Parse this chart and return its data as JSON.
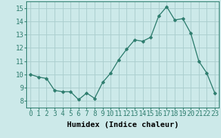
{
  "x": [
    0,
    1,
    2,
    3,
    4,
    5,
    6,
    7,
    8,
    9,
    10,
    11,
    12,
    13,
    14,
    15,
    16,
    17,
    18,
    19,
    20,
    21,
    22,
    23
  ],
  "y": [
    10.0,
    9.8,
    9.7,
    8.8,
    8.7,
    8.7,
    8.1,
    8.6,
    8.2,
    9.4,
    10.1,
    11.1,
    11.9,
    12.6,
    12.5,
    12.8,
    14.4,
    15.1,
    14.1,
    14.2,
    13.1,
    11.0,
    10.1,
    8.6
  ],
  "xlabel": "Humidex (Indice chaleur)",
  "xlim": [
    -0.5,
    23.5
  ],
  "ylim": [
    7.5,
    15.5
  ],
  "yticks": [
    8,
    9,
    10,
    11,
    12,
    13,
    14,
    15
  ],
  "xticks": [
    0,
    1,
    2,
    3,
    4,
    5,
    6,
    7,
    8,
    9,
    10,
    11,
    12,
    13,
    14,
    15,
    16,
    17,
    18,
    19,
    20,
    21,
    22,
    23
  ],
  "xtick_labels": [
    "0",
    "1",
    "2",
    "3",
    "4",
    "5",
    "6",
    "7",
    "8",
    "9",
    "10",
    "11",
    "12",
    "13",
    "14",
    "15",
    "16",
    "17",
    "18",
    "19",
    "20",
    "21",
    "22",
    "23"
  ],
  "line_color": "#2e7d6e",
  "marker_color": "#2e7d6e",
  "bg_color": "#cce9e9",
  "grid_color": "#aacece",
  "label_fontsize": 8,
  "tick_fontsize": 7
}
